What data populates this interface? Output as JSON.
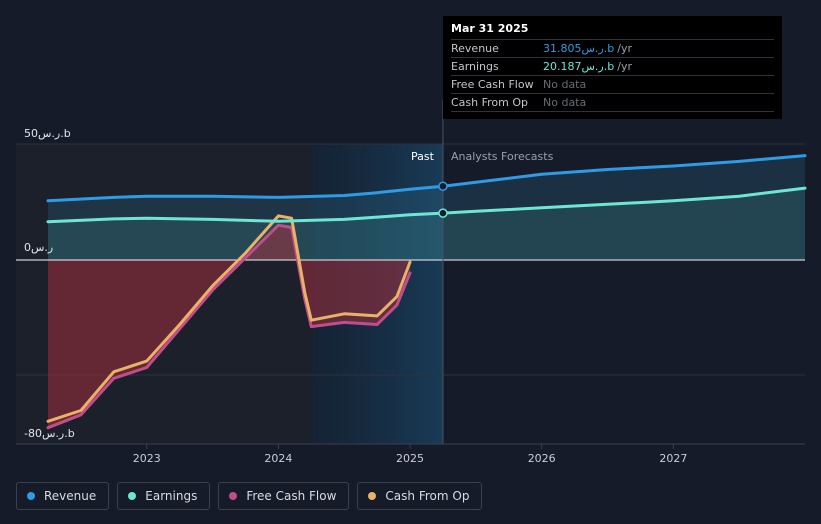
{
  "tooltip": {
    "date": "Mar 31 2025",
    "rows": [
      {
        "label": "Revenue",
        "value": "31.805ر.س.b",
        "unit": "/yr",
        "color": "#2f9be6"
      },
      {
        "label": "Earnings",
        "value": "20.187ر.س.b",
        "unit": "/yr",
        "color": "#6ee6d4"
      },
      {
        "label": "Free Cash Flow",
        "value": "No data",
        "unit": "",
        "color": "#666c75"
      },
      {
        "label": "Cash From Op",
        "value": "No data",
        "unit": "",
        "color": "#666c75"
      }
    ]
  },
  "legend": [
    {
      "label": "Revenue",
      "color": "#2f9be6"
    },
    {
      "label": "Earnings",
      "color": "#6ee6d4"
    },
    {
      "label": "Free Cash Flow",
      "color": "#c04d8c"
    },
    {
      "label": "Cash From Op",
      "color": "#e9b266"
    }
  ],
  "chart_data": {
    "type": "line",
    "y_tick_labels": {
      "top": "50ر.س.b",
      "zero": "0ر.س",
      "bottom": "-80ر.س.b"
    },
    "ylim": [
      -80,
      50
    ],
    "xlim": [
      2022.25,
      2028.0
    ],
    "x_ticks": [
      2023,
      2024,
      2025,
      2026,
      2027
    ],
    "past_label": "Past",
    "forecast_label": "Analysts Forecasts",
    "past_end": 2025.25,
    "highlight_start": 2024.25,
    "series": [
      {
        "name": "Revenue",
        "color": "#2f9be6",
        "points": [
          [
            2022.25,
            25.5
          ],
          [
            2022.75,
            27
          ],
          [
            2023,
            27.5
          ],
          [
            2023.5,
            27.5
          ],
          [
            2024,
            27
          ],
          [
            2024.5,
            27.8
          ],
          [
            2024.75,
            29
          ],
          [
            2025,
            30.5
          ],
          [
            2025.25,
            31.8
          ],
          [
            2025.5,
            33.5
          ],
          [
            2026,
            37
          ],
          [
            2026.5,
            39
          ],
          [
            2027,
            40.5
          ],
          [
            2027.5,
            42.5
          ],
          [
            2028,
            45
          ]
        ]
      },
      {
        "name": "Earnings",
        "color": "#6ee6d4",
        "points": [
          [
            2022.25,
            16.5
          ],
          [
            2022.75,
            17.7
          ],
          [
            2023,
            18
          ],
          [
            2023.5,
            17.5
          ],
          [
            2024,
            16.7
          ],
          [
            2024.5,
            17.5
          ],
          [
            2024.75,
            18.5
          ],
          [
            2025,
            19.5
          ],
          [
            2025.25,
            20.2
          ],
          [
            2025.5,
            21
          ],
          [
            2026,
            22.5
          ],
          [
            2026.5,
            24
          ],
          [
            2027,
            25.5
          ],
          [
            2027.5,
            27.5
          ],
          [
            2028,
            31
          ]
        ]
      },
      {
        "name": "Free Cash Flow",
        "color": "#c04d8c",
        "points": [
          [
            2022.25,
            -78
          ],
          [
            2022.5,
            -72
          ],
          [
            2022.75,
            -55
          ],
          [
            2023,
            -50
          ],
          [
            2023.25,
            -32
          ],
          [
            2023.5,
            -14
          ],
          [
            2023.75,
            1
          ],
          [
            2024,
            15
          ],
          [
            2024.1,
            14
          ],
          [
            2024.2,
            -18
          ],
          [
            2024.25,
            -31
          ],
          [
            2024.5,
            -29
          ],
          [
            2024.75,
            -30
          ],
          [
            2024.9,
            -21
          ],
          [
            2025,
            -6
          ]
        ]
      },
      {
        "name": "Cash From Op",
        "color": "#e9b266",
        "points": [
          [
            2022.25,
            -75
          ],
          [
            2022.5,
            -70
          ],
          [
            2022.75,
            -52
          ],
          [
            2023,
            -47
          ],
          [
            2023.25,
            -30
          ],
          [
            2023.5,
            -12
          ],
          [
            2023.75,
            3
          ],
          [
            2024,
            19
          ],
          [
            2024.1,
            18
          ],
          [
            2024.2,
            -15
          ],
          [
            2024.25,
            -28
          ],
          [
            2024.5,
            -25
          ],
          [
            2024.75,
            -26
          ],
          [
            2024.9,
            -17
          ],
          [
            2025,
            -1
          ]
        ]
      }
    ]
  }
}
